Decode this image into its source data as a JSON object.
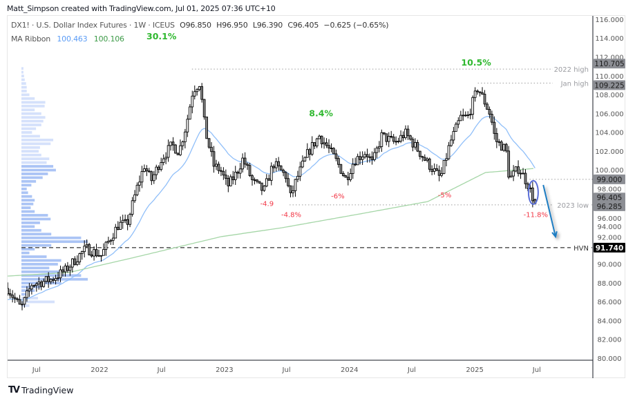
{
  "header": {
    "credit": "Matt_Simpson created with TradingView.com, Jul 01, 2025 07:36 UTC+10",
    "symbol_line": "DX1! · U.S. Dollar Index Futures · 1W · ICEUS",
    "open": "O96.850",
    "high": "H96.950",
    "low": "L96.390",
    "close": "C96.405",
    "change": "−0.625 (−0.65%)",
    "indicator_name": "MA Ribbon",
    "ma_fast_value": "100.463",
    "ma_slow_value": "100.106"
  },
  "footer": {
    "brand": "TradingView"
  },
  "colors": {
    "ma_fast": "#90bff9",
    "ma_slow": "#a5d6a7",
    "bull_body": "#ffffff",
    "bear_body": "#8c8c8c",
    "gain_label": "#2fb82f",
    "loss_label": "#f23645",
    "volume_profile": "#b2c9f7",
    "volume_profile_value_area": "#8fb0f2",
    "arrow": "#1a7bc2",
    "ellipse": "#5b6fd8"
  },
  "chart_data": {
    "type": "candlestick",
    "timeframe": "1W",
    "y_range": [
      80,
      116
    ],
    "y_ticks": [
      "80.000",
      "82.000",
      "84.000",
      "86.000",
      "88.000",
      "90.000",
      "92.000",
      "94.000",
      "96.000",
      "98.000",
      "100.000",
      "102.000",
      "104.000",
      "106.000",
      "108.000",
      "110.000",
      "112.000",
      "114.000",
      "116.000"
    ],
    "x_ticks": [
      {
        "label": "Jul",
        "date": "2021-07-01"
      },
      {
        "label": "2022",
        "date": "2022-01-01"
      },
      {
        "label": "Jul",
        "date": "2022-07-01"
      },
      {
        "label": "2023",
        "date": "2023-01-01"
      },
      {
        "label": "Jul",
        "date": "2023-07-01"
      },
      {
        "label": "2024",
        "date": "2024-01-01"
      },
      {
        "label": "Jul",
        "date": "2024-07-01"
      },
      {
        "label": "2025",
        "date": "2025-01-01"
      },
      {
        "label": "Jul",
        "date": "2025-07-01"
      }
    ],
    "close_path": [
      [
        "2021-04-08",
        87.4
      ],
      [
        "2021-05-17",
        85.28
      ],
      [
        "2021-06-17",
        87.84
      ],
      [
        "2021-08-13",
        88.36
      ],
      [
        "2021-09-23",
        89.31
      ],
      [
        "2021-11-03",
        90.92
      ],
      [
        "2021-11-23",
        91.66
      ],
      [
        "2022-01-06",
        90.92
      ],
      [
        "2022-02-02",
        92.76
      ],
      [
        "2022-02-26",
        94.22
      ],
      [
        "2022-03-22",
        94.22
      ],
      [
        "2022-04-22",
        98.26
      ],
      [
        "2022-05-12",
        100.45
      ],
      [
        "2022-06-01",
        98.84
      ],
      [
        "2022-07-01",
        101.19
      ],
      [
        "2022-08-01",
        102.65
      ],
      [
        "2022-08-21",
        101.92
      ],
      [
        "2022-09-11",
        104.71
      ],
      [
        "2022-10-01",
        108.52
      ],
      [
        "2022-10-21",
        109.25
      ],
      [
        "2022-11-06",
        104.12
      ],
      [
        "2022-12-01",
        100.45
      ],
      [
        "2022-12-21",
        99.94
      ],
      [
        "2023-01-10",
        98.26
      ],
      [
        "2023-02-06",
        99.72
      ],
      [
        "2023-02-24",
        101.19
      ],
      [
        "2023-03-24",
        98.77
      ],
      [
        "2023-04-26",
        97.74
      ],
      [
        "2023-05-24",
        100.67
      ],
      [
        "2023-07-03",
        99.21
      ],
      [
        "2023-07-10",
        96.79
      ],
      [
        "2023-07-30",
        98.99
      ],
      [
        "2023-09-03",
        101.92
      ],
      [
        "2023-10-05",
        103.61
      ],
      [
        "2023-10-29",
        102.43
      ],
      [
        "2023-11-28",
        100.67
      ],
      [
        "2023-12-22",
        98.99
      ],
      [
        "2024-01-14",
        100.97
      ],
      [
        "2024-02-18",
        101.92
      ],
      [
        "2024-03-08",
        100.67
      ],
      [
        "2024-04-04",
        103.61
      ],
      [
        "2024-05-14",
        102.87
      ],
      [
        "2024-06-12",
        103.9
      ],
      [
        "2024-07-08",
        102.65
      ],
      [
        "2024-08-11",
        100.97
      ],
      [
        "2024-09-13",
        99.5
      ],
      [
        "2024-09-23",
        99.13
      ],
      [
        "2024-10-21",
        102.87
      ],
      [
        "2024-11-21",
        105.59
      ],
      [
        "2024-12-11",
        105.59
      ],
      [
        "2025-01-10",
        108.74
      ],
      [
        "2025-02-01",
        107.05
      ],
      [
        "2025-02-16",
        105.81
      ],
      [
        "2025-03-02",
        103.17
      ],
      [
        "2025-04-02",
        102.14
      ],
      [
        "2025-04-12",
        98.99
      ],
      [
        "2025-05-10",
        100.23
      ],
      [
        "2025-06-05",
        98.47
      ],
      [
        "2025-06-26",
        96.41
      ]
    ],
    "last_candle": {
      "open": 96.85,
      "high": 96.95,
      "low": 96.39,
      "close": 96.405
    },
    "ma_slow_path": [
      [
        "2021-04-08",
        88.72
      ],
      [
        "2021-10-04",
        89.1
      ],
      [
        "2022-04-22",
        90.78
      ],
      [
        "2022-12-21",
        92.9
      ],
      [
        "2023-06-19",
        93.86
      ],
      [
        "2024-01-28",
        95.3
      ],
      [
        "2024-08-17",
        96.64
      ],
      [
        "2025-02-01",
        99.72
      ],
      [
        "2025-06-26",
        100.16
      ]
    ],
    "volume_profile": {
      "price_top": 110.8,
      "bucket_size": 0.4,
      "value_area": [
        86.8,
        100.6
      ],
      "relative_volume": [
        3,
        3,
        4,
        5,
        7,
        8,
        8,
        12,
        20,
        36,
        35,
        20,
        30,
        36,
        33,
        30,
        22,
        16,
        28,
        48,
        44,
        28,
        26,
        30,
        42,
        38,
        48,
        52,
        40,
        32,
        22,
        15,
        8,
        10,
        16,
        20,
        18,
        14,
        20,
        40,
        44,
        28,
        20,
        30,
        45,
        90,
        100,
        45,
        20,
        12,
        38,
        60,
        55,
        42,
        60,
        90,
        100,
        60,
        30,
        20,
        8,
        25,
        50,
        12
      ]
    },
    "levels": [
      {
        "label": "2022 high",
        "price": 110.705,
        "price_label": "110.705",
        "from": "2022-09-28",
        "style": "dotted"
      },
      {
        "label": "Jan high",
        "price": 109.225,
        "price_label": "109.225",
        "from": "2025-01-10",
        "style": "dotted"
      },
      {
        "label": "",
        "price": 99.0,
        "price_label": "99.000",
        "from": "2025-06-10",
        "style": "dotted"
      },
      {
        "label": "2023 low",
        "price": 96.285,
        "price_label": "96.285",
        "from": "2023-07-10",
        "style": "dotted"
      },
      {
        "label": "HVN",
        "price": 91.74,
        "price_label": "91.740",
        "from": "2021-06-01",
        "style": "dashed"
      }
    ],
    "current_price_label": {
      "price": 96.405,
      "price_label": "96.405"
    },
    "annotations": [
      {
        "text": "30.1%",
        "type": "gain",
        "date": "2022-07-01",
        "price": 114.1
      },
      {
        "text": "8.4%",
        "type": "gain",
        "date": "2023-10-10",
        "price": 105.9
      },
      {
        "text": "10.5%",
        "type": "gain",
        "date": "2025-01-05",
        "price": 111.3
      },
      {
        "text": "-4.9",
        "type": "loss",
        "date": "2023-05-05",
        "price": 96.4
      },
      {
        "text": "-4.8%",
        "type": "loss",
        "date": "2023-07-15",
        "price": 95.2
      },
      {
        "text": "-6%",
        "type": "loss",
        "date": "2023-11-28",
        "price": 97.2
      },
      {
        "text": "-5%",
        "type": "loss",
        "date": "2024-10-05",
        "price": 97.3
      },
      {
        "text": "-11.8%",
        "type": "loss",
        "date": "2025-06-28",
        "price": 95.2
      }
    ],
    "projection_arrow": {
      "from": [
        "2025-07-20",
        98.4
      ],
      "to": [
        "2025-08-25",
        92.9
      ]
    }
  }
}
